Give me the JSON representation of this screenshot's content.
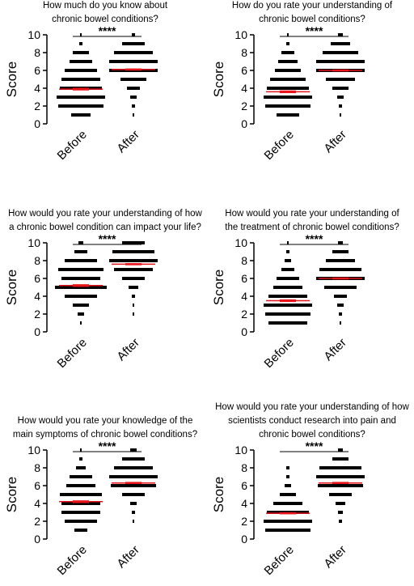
{
  "chart_data": [
    {
      "type": "dot",
      "title": [
        "How much do you know about",
        "chronic bowel conditions?"
      ],
      "ylabel": "Score",
      "annotation": "****",
      "categories": [
        "Before",
        "After"
      ],
      "levels": [
        0,
        1,
        2,
        3,
        4,
        5,
        6,
        7,
        8,
        9,
        10
      ],
      "counts": [
        [
          0,
          12,
          28,
          30,
          26,
          24,
          20,
          14,
          10,
          2,
          1
        ],
        [
          0,
          1,
          2,
          4,
          8,
          16,
          30,
          30,
          24,
          14,
          2
        ]
      ],
      "mean": [
        3.9,
        6.1
      ],
      "sem": [
        0.15,
        0.12
      ],
      "color": "#000000",
      "mean_color": "#e8141b",
      "ylim": [
        0,
        10
      ],
      "yticks": [
        0,
        2,
        4,
        6,
        8,
        10
      ]
    },
    {
      "type": "dot",
      "title": [
        "How do you rate your understanding of",
        "chronic bowel conditions?"
      ],
      "ylabel": "Score",
      "annotation": "****",
      "categories": [
        "Before",
        "After"
      ],
      "levels": [
        0,
        1,
        2,
        3,
        4,
        5,
        6,
        7,
        8,
        9,
        10
      ],
      "counts": [
        [
          0,
          14,
          28,
          30,
          26,
          22,
          16,
          12,
          8,
          2,
          1
        ],
        [
          0,
          1,
          2,
          4,
          10,
          18,
          30,
          30,
          22,
          12,
          3
        ]
      ],
      "mean": [
        3.6,
        6.0
      ],
      "sem": [
        0.15,
        0.12
      ],
      "color": "#000000",
      "mean_color": "#e8141b",
      "ylim": [
        0,
        10
      ],
      "yticks": [
        0,
        2,
        4,
        6,
        8,
        10
      ]
    },
    {
      "type": "dot",
      "title": [
        "How would you rate your understanding of how",
        "a chronic bowel condition can impact your life?"
      ],
      "ylabel": "Score",
      "annotation": "****",
      "categories": [
        "Before",
        "After"
      ],
      "levels": [
        0,
        1,
        2,
        3,
        4,
        5,
        6,
        7,
        8,
        9,
        10
      ],
      "counts": [
        [
          0,
          1,
          4,
          10,
          20,
          32,
          24,
          28,
          20,
          8,
          3
        ],
        [
          0,
          0,
          1,
          1,
          2,
          6,
          14,
          24,
          30,
          26,
          14
        ]
      ],
      "mean": [
        5.2,
        7.6
      ],
      "sem": [
        0.15,
        0.12
      ],
      "color": "#000000",
      "mean_color": "#e8141b",
      "ylim": [
        0,
        10
      ],
      "yticks": [
        0,
        2,
        4,
        6,
        8,
        10
      ]
    },
    {
      "type": "dot",
      "title": [
        "How would you rate your understanding of",
        "the treatment of chronic bowel conditions?"
      ],
      "ylabel": "Score",
      "annotation": "****",
      "categories": [
        "Before",
        "After"
      ],
      "levels": [
        0,
        1,
        2,
        3,
        4,
        5,
        6,
        7,
        8,
        9,
        10
      ],
      "counts": [
        [
          0,
          24,
          28,
          30,
          24,
          18,
          14,
          8,
          4,
          2,
          1
        ],
        [
          0,
          1,
          2,
          4,
          8,
          20,
          30,
          26,
          18,
          10,
          3
        ]
      ],
      "mean": [
        3.5,
        6.0
      ],
      "sem": [
        0.15,
        0.12
      ],
      "color": "#000000",
      "mean_color": "#e8141b",
      "ylim": [
        0,
        10
      ],
      "yticks": [
        0,
        2,
        4,
        6,
        8,
        10
      ]
    },
    {
      "type": "dot",
      "title": [
        "How would you rate your knowledge of the",
        "main symptoms of chronic bowel conditions?"
      ],
      "ylabel": "Score",
      "annotation": "****",
      "categories": [
        "Before",
        "After"
      ],
      "levels": [
        0,
        1,
        2,
        3,
        4,
        5,
        6,
        7,
        8,
        9,
        10
      ],
      "counts": [
        [
          0,
          8,
          20,
          24,
          24,
          26,
          18,
          14,
          6,
          2,
          1
        ],
        [
          0,
          0,
          1,
          2,
          4,
          14,
          28,
          30,
          24,
          14,
          4
        ]
      ],
      "mean": [
        4.2,
        6.3
      ],
      "sem": [
        0.15,
        0.12
      ],
      "color": "#000000",
      "mean_color": "#e8141b",
      "ylim": [
        0,
        10
      ],
      "yticks": [
        0,
        2,
        4,
        6,
        8,
        10
      ]
    },
    {
      "type": "dot",
      "title": [
        "How would you rate your understanding of how",
        "scientists conduct research into pain and",
        "chronic bowel conditions?"
      ],
      "ylabel": "Score",
      "annotation": "****",
      "categories": [
        "Before",
        "After"
      ],
      "levels": [
        0,
        1,
        2,
        3,
        4,
        5,
        6,
        7,
        8,
        9,
        10
      ],
      "counts": [
        [
          0,
          28,
          30,
          26,
          18,
          10,
          4,
          2,
          2,
          0,
          0
        ],
        [
          0,
          0,
          2,
          3,
          6,
          14,
          28,
          30,
          26,
          10,
          3
        ]
      ],
      "mean": [
        2.9,
        6.3
      ],
      "sem": [
        0.12,
        0.12
      ],
      "color": "#000000",
      "mean_color": "#e8141b",
      "ylim": [
        0,
        10
      ],
      "yticks": [
        0,
        2,
        4,
        6,
        8,
        10
      ]
    }
  ]
}
